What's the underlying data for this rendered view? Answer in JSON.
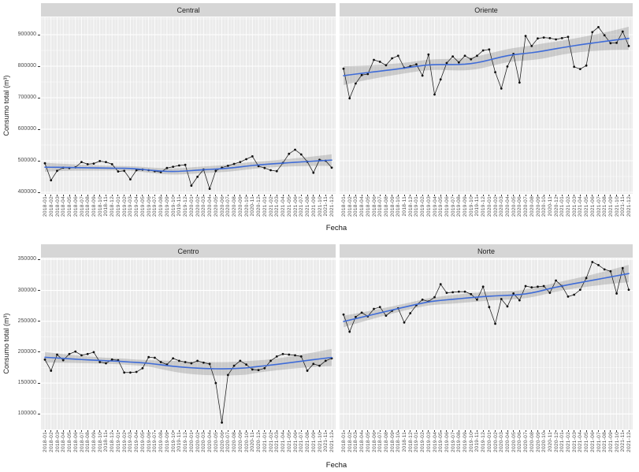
{
  "page": {
    "background": "#ffffff"
  },
  "chart_data": {
    "type": "line",
    "faceted": true,
    "facet_layout": "2x2",
    "xlabel": "Fecha",
    "ylabel": "Consumo total (m³)",
    "legend": "none",
    "grid": "on",
    "x_tick_rotation": 90,
    "x": [
      "2018-01",
      "2018-02",
      "2018-03",
      "2018-04",
      "2018-05",
      "2018-06",
      "2018-07",
      "2018-08",
      "2018-09",
      "2018-10",
      "2018-11",
      "2018-12",
      "2019-01",
      "2019-02",
      "2019-03",
      "2019-04",
      "2019-05",
      "2019-06",
      "2019-07",
      "2019-08",
      "2019-09",
      "2019-10",
      "2019-11",
      "2019-12",
      "2020-01",
      "2020-02",
      "2020-03",
      "2020-04",
      "2020-05",
      "2020-06",
      "2020-07",
      "2020-08",
      "2020-09",
      "2020-10",
      "2020-11",
      "2020-12",
      "2021-01",
      "2021-02",
      "2021-03",
      "2021-04",
      "2021-05",
      "2021-06",
      "2021-07",
      "2021-08",
      "2021-09",
      "2021-10",
      "2021-11",
      "2021-12"
    ],
    "rows": [
      {
        "yticks": [
          400000,
          500000,
          600000,
          700000,
          800000,
          900000
        ],
        "ylim": [
          395000,
          955000
        ]
      },
      {
        "yticks": [
          100000,
          150000,
          200000,
          250000,
          300000,
          350000
        ],
        "ylim": [
          74900,
          351700
        ]
      }
    ],
    "facets": [
      {
        "name": "Central",
        "row": 0,
        "col": 0,
        "values": [
          492000,
          438000,
          468000,
          478000,
          477000,
          479000,
          496000,
          489000,
          491000,
          499000,
          496000,
          489000,
          466000,
          468000,
          441000,
          470000,
          472000,
          470000,
          467000,
          464000,
          477000,
          481000,
          485000,
          487000,
          421000,
          449000,
          472000,
          411000,
          468000,
          478000,
          484000,
          490000,
          496000,
          505000,
          514000,
          483000,
          477000,
          470000,
          467000,
          493000,
          522000,
          535000,
          520000,
          497000,
          462000,
          503000,
          500000,
          478000
        ]
      },
      {
        "name": "Oriente",
        "row": 0,
        "col": 1,
        "values": [
          792000,
          698000,
          745000,
          772000,
          775000,
          820000,
          814000,
          803000,
          825000,
          833000,
          795000,
          800000,
          806000,
          770000,
          837000,
          710000,
          758000,
          810000,
          831000,
          812000,
          833000,
          822000,
          833000,
          850000,
          853000,
          781000,
          729000,
          799000,
          839000,
          748000,
          896000,
          864000,
          888000,
          891000,
          889000,
          885000,
          889000,
          893000,
          798000,
          791000,
          802000,
          908000,
          924000,
          898000,
          873000,
          874000,
          910000,
          864000
        ]
      },
      {
        "name": "Centro",
        "row": 1,
        "col": 0,
        "values": [
          188000,
          170000,
          196000,
          187000,
          197000,
          201000,
          195000,
          197000,
          200000,
          184000,
          182000,
          188000,
          187000,
          167000,
          167000,
          168000,
          174000,
          192000,
          191000,
          184000,
          180000,
          190000,
          186000,
          184000,
          182000,
          186000,
          183000,
          181000,
          150000,
          86000,
          163000,
          178000,
          186000,
          180000,
          172000,
          171000,
          174000,
          186000,
          193000,
          197000,
          196000,
          195000,
          193000,
          170000,
          181000,
          178000,
          186000,
          190000
        ]
      },
      {
        "name": "Norte",
        "row": 1,
        "col": 1,
        "values": [
          261000,
          233000,
          257000,
          264000,
          258000,
          270000,
          273000,
          259000,
          267000,
          271000,
          248000,
          263000,
          276000,
          285000,
          282000,
          289000,
          310000,
          296000,
          297000,
          298000,
          298000,
          294000,
          285000,
          306000,
          273000,
          246000,
          286000,
          274000,
          295000,
          284000,
          307000,
          305000,
          306000,
          307000,
          296000,
          316000,
          307000,
          290000,
          293000,
          301000,
          320000,
          346000,
          341000,
          334000,
          331000,
          295000,
          336000,
          301000
        ]
      }
    ],
    "smoother": "loess",
    "style": {
      "panel_bg": "#ebebeb",
      "strip_bg": "#d6d6d6",
      "grid_color": "#ffffff",
      "point_color": "#111111",
      "line_color": "#1a1a1a",
      "smooth_color": "#3f6cd8",
      "ribbon_color": "rgba(115,115,115,0.28)",
      "axis_text_color": "#4d4d4d"
    }
  }
}
